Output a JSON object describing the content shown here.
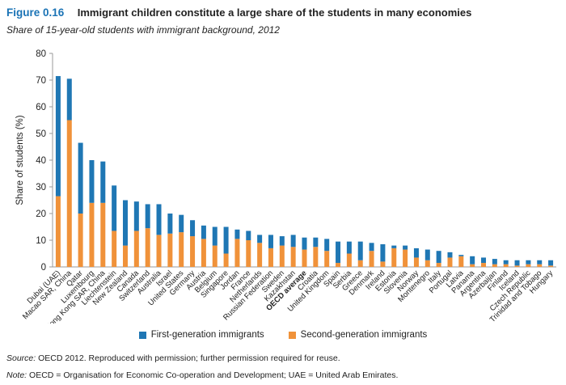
{
  "figure": {
    "number": "Figure 0.16",
    "title": "Immigrant children constitute a large share of the students in many economies",
    "subtitle": "Share of 15-year-old students with immigrant background, 2012"
  },
  "colors": {
    "first_generation": "#1f77b4",
    "second_generation": "#f0923a",
    "axis": "#999999"
  },
  "chart_data": {
    "type": "bar",
    "stacked": true,
    "ylabel": "Share of students (%)",
    "xlabel": "",
    "ylim": [
      0,
      80
    ],
    "yticks": [
      0,
      10,
      20,
      30,
      40,
      50,
      60,
      70,
      80
    ],
    "grid": false,
    "legend_position": "bottom",
    "categories": [
      "Dubai (UAE)",
      "Macao SAR, China",
      "Qatar",
      "Luxembourg",
      "Hong Kong SAR, China",
      "Liechtenstein",
      "New Zealand",
      "Canada",
      "Switzerland",
      "Australia",
      "Israel",
      "United States",
      "Germany",
      "Austria",
      "Belgium",
      "Singapore",
      "Jordan",
      "France",
      "Netherlands",
      "Russian Federation",
      "Sweden",
      "Kazakhstan",
      "OECD average",
      "Croatia",
      "United Kingdom",
      "Spain",
      "Serbia",
      "Greece",
      "Denmark",
      "Ireland",
      "Estonia",
      "Slovenia",
      "Norway",
      "Montenegro",
      "Italy",
      "Portugal",
      "Latvia",
      "Panama",
      "Argentina",
      "Azerbaijan",
      "Finland",
      "Iceland",
      "Czech Republic",
      "Trinidad and Tobago",
      "Hungary"
    ],
    "highlight_category": "OECD average",
    "series": [
      {
        "name": "Second-generation immigrants",
        "values": [
          26.5,
          55,
          20,
          24,
          24,
          13.5,
          8,
          13.5,
          14.5,
          12,
          12.5,
          13,
          11.5,
          10.5,
          8,
          5,
          10.5,
          10,
          9,
          7,
          8,
          7.5,
          6.5,
          7.5,
          6,
          1.5,
          5,
          2.5,
          6,
          2,
          7,
          6.5,
          3.5,
          2.5,
          1.5,
          3.5,
          4,
          1,
          1.5,
          1,
          1,
          0.5,
          1,
          1,
          0.5
        ]
      },
      {
        "name": "First-generation immigrants",
        "values": [
          45,
          15.5,
          26.5,
          16,
          15.5,
          17,
          17,
          11,
          9,
          11.5,
          7.5,
          6.5,
          6,
          5,
          7,
          10,
          3.5,
          3.5,
          3,
          5,
          3.5,
          4.5,
          4.5,
          3.5,
          4.5,
          8,
          4.5,
          7,
          3,
          6.5,
          1,
          1.5,
          3.5,
          4,
          4.5,
          2,
          0.5,
          3,
          2,
          2,
          1.5,
          2,
          1.5,
          1.5,
          2
        ]
      }
    ]
  },
  "legend": {
    "first_label": "First-generation immigrants",
    "second_label": "Second-generation immigrants"
  },
  "footer": {
    "source_label": "Source:",
    "source_text": " OECD 2012. Reproduced with permission; further permission required for reuse.",
    "note_label": "Note:",
    "note_text": " OECD = Organisation for Economic Co-operation and Development; UAE = United Arab Emirates."
  }
}
